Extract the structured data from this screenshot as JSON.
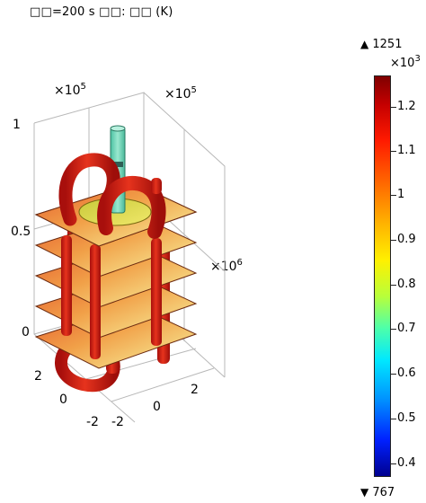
{
  "header": {
    "title": "□□=200 s   □□: □□ (K)"
  },
  "axes": {
    "left_multiplier_base": "×10",
    "left_multiplier_exp": "5",
    "mid_multiplier_base": "×10",
    "mid_multiplier_exp": "5",
    "right_multiplier_base": "×10",
    "right_multiplier_exp": "6",
    "z_ticks": [
      "1",
      "0.5",
      "0"
    ],
    "y_ticks": [
      "2",
      "0",
      "-2"
    ],
    "x_ticks": [
      "2",
      "0",
      "-2"
    ]
  },
  "colorbar": {
    "max_label": "1251",
    "min_label": "767",
    "multiplier_base": "×10",
    "multiplier_exp": "3",
    "ticks": [
      "1.2",
      "1.1",
      "1",
      "0.9",
      "0.8",
      "0.7",
      "0.6",
      "0.5",
      "0.4"
    ],
    "max_value": 1251,
    "min_value": 767
  },
  "colors": {
    "hot": "#c81e14",
    "warm": "#e8582c",
    "plate_mid": "#f2a24c",
    "plate_light": "#f5d27a",
    "cool_tube": "#6fd6b8",
    "disc": "#d8d84a"
  }
}
